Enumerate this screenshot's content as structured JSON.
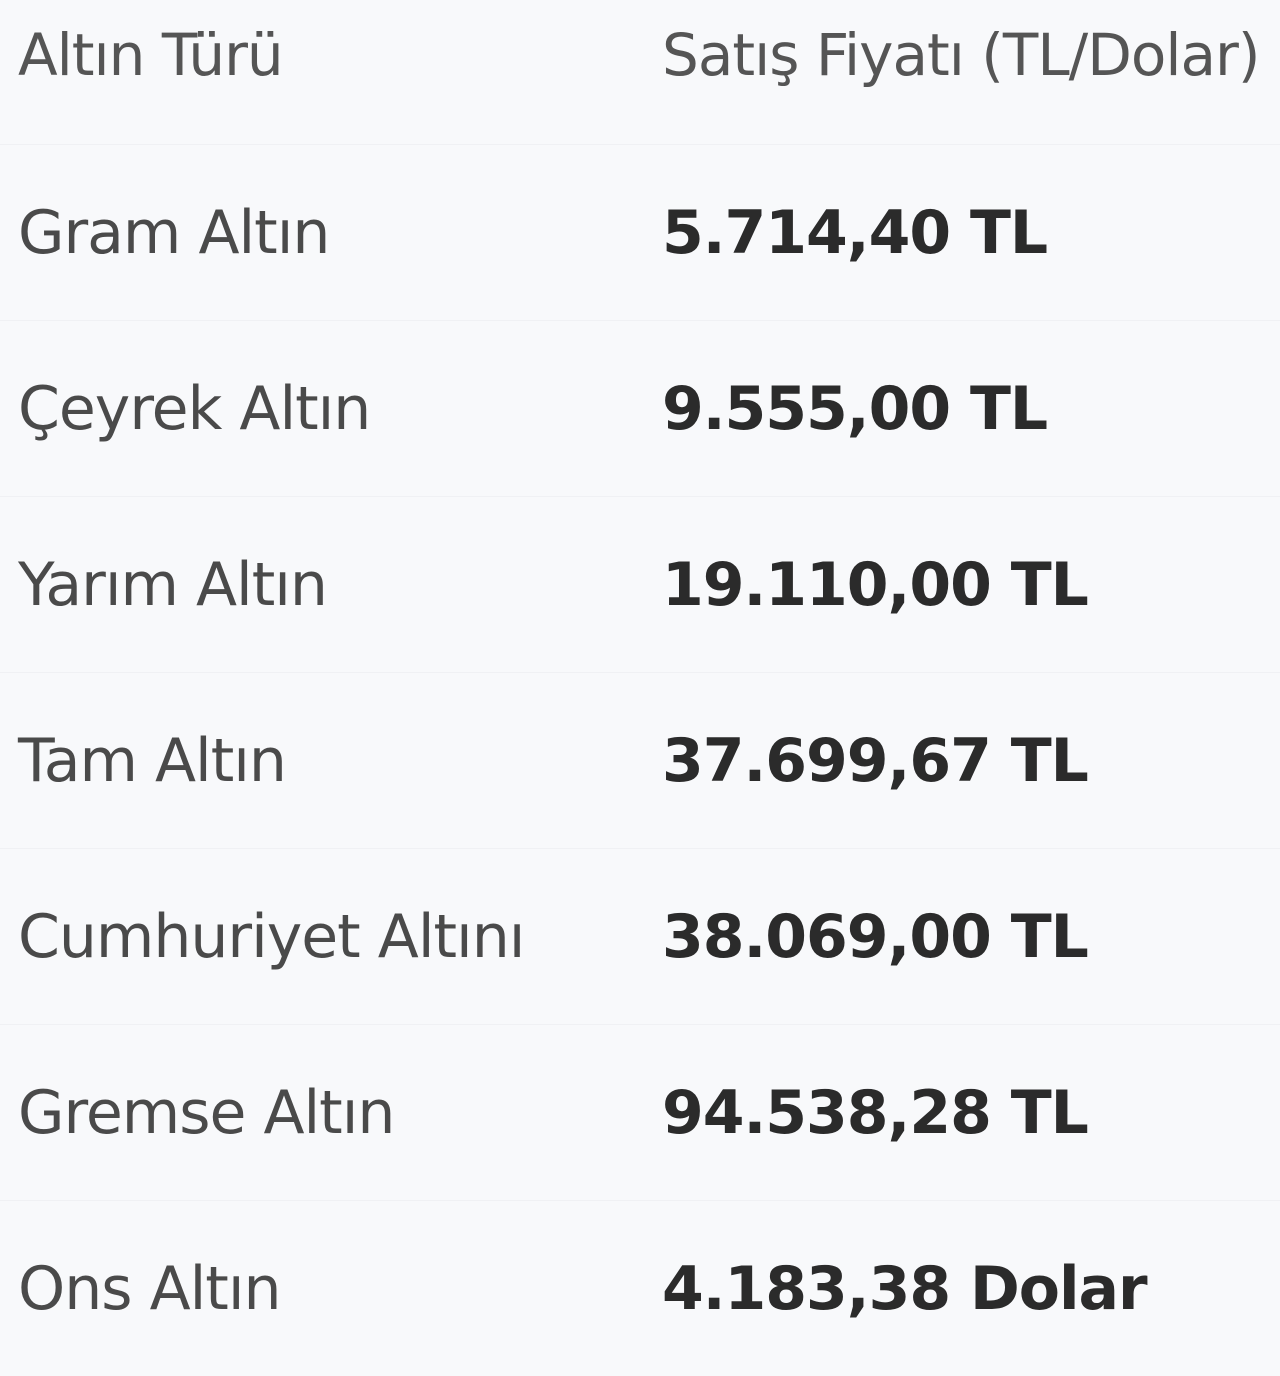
{
  "table": {
    "header": [
      "Altın Türü",
      "Satış Fiyatı (TL/Dolar)"
    ],
    "rows": [
      [
        "Gram Altın",
        "5.714,40 TL"
      ],
      [
        "Çeyrek Altın",
        "9.555,00 TL"
      ],
      [
        "Yarım Altın",
        "19.110,00 TL"
      ],
      [
        "Tam Altın",
        "37.699,67 TL"
      ],
      [
        "Cumhuriyet Altını",
        "38.069,00 TL"
      ],
      [
        "Gremse Altın",
        "94.538,28 TL"
      ],
      [
        "Ons Altın",
        "4.183,38 Dolar"
      ]
    ]
  }
}
